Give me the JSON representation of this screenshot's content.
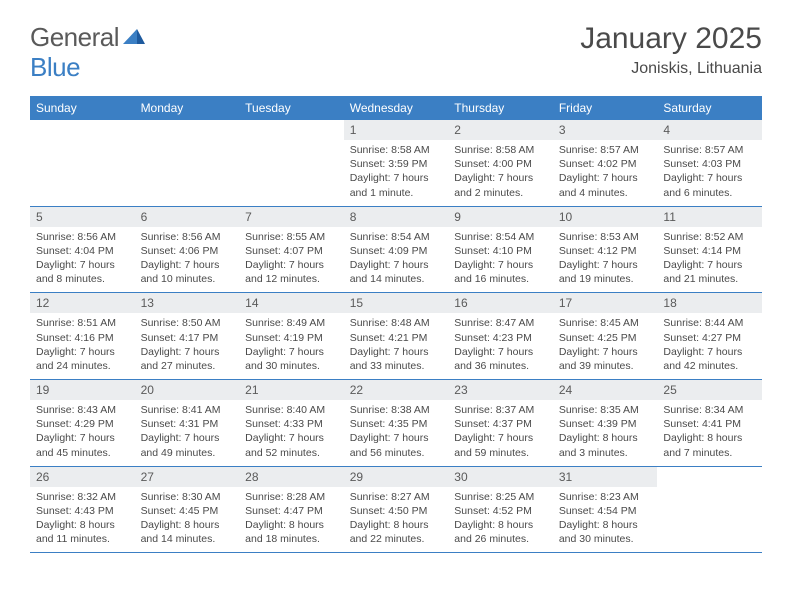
{
  "brand": {
    "text1": "General",
    "text2": "Blue"
  },
  "title": "January 2025",
  "location": "Joniskis, Lithuania",
  "headerColor": "#3b7fc4",
  "dayNames": [
    "Sunday",
    "Monday",
    "Tuesday",
    "Wednesday",
    "Thursday",
    "Friday",
    "Saturday"
  ],
  "weeks": [
    [
      {
        "n": "",
        "lines": []
      },
      {
        "n": "",
        "lines": []
      },
      {
        "n": "",
        "lines": []
      },
      {
        "n": "1",
        "lines": [
          "Sunrise: 8:58 AM",
          "Sunset: 3:59 PM",
          "Daylight: 7 hours and 1 minute."
        ]
      },
      {
        "n": "2",
        "lines": [
          "Sunrise: 8:58 AM",
          "Sunset: 4:00 PM",
          "Daylight: 7 hours and 2 minutes."
        ]
      },
      {
        "n": "3",
        "lines": [
          "Sunrise: 8:57 AM",
          "Sunset: 4:02 PM",
          "Daylight: 7 hours and 4 minutes."
        ]
      },
      {
        "n": "4",
        "lines": [
          "Sunrise: 8:57 AM",
          "Sunset: 4:03 PM",
          "Daylight: 7 hours and 6 minutes."
        ]
      }
    ],
    [
      {
        "n": "5",
        "lines": [
          "Sunrise: 8:56 AM",
          "Sunset: 4:04 PM",
          "Daylight: 7 hours and 8 minutes."
        ]
      },
      {
        "n": "6",
        "lines": [
          "Sunrise: 8:56 AM",
          "Sunset: 4:06 PM",
          "Daylight: 7 hours and 10 minutes."
        ]
      },
      {
        "n": "7",
        "lines": [
          "Sunrise: 8:55 AM",
          "Sunset: 4:07 PM",
          "Daylight: 7 hours and 12 minutes."
        ]
      },
      {
        "n": "8",
        "lines": [
          "Sunrise: 8:54 AM",
          "Sunset: 4:09 PM",
          "Daylight: 7 hours and 14 minutes."
        ]
      },
      {
        "n": "9",
        "lines": [
          "Sunrise: 8:54 AM",
          "Sunset: 4:10 PM",
          "Daylight: 7 hours and 16 minutes."
        ]
      },
      {
        "n": "10",
        "lines": [
          "Sunrise: 8:53 AM",
          "Sunset: 4:12 PM",
          "Daylight: 7 hours and 19 minutes."
        ]
      },
      {
        "n": "11",
        "lines": [
          "Sunrise: 8:52 AM",
          "Sunset: 4:14 PM",
          "Daylight: 7 hours and 21 minutes."
        ]
      }
    ],
    [
      {
        "n": "12",
        "lines": [
          "Sunrise: 8:51 AM",
          "Sunset: 4:16 PM",
          "Daylight: 7 hours and 24 minutes."
        ]
      },
      {
        "n": "13",
        "lines": [
          "Sunrise: 8:50 AM",
          "Sunset: 4:17 PM",
          "Daylight: 7 hours and 27 minutes."
        ]
      },
      {
        "n": "14",
        "lines": [
          "Sunrise: 8:49 AM",
          "Sunset: 4:19 PM",
          "Daylight: 7 hours and 30 minutes."
        ]
      },
      {
        "n": "15",
        "lines": [
          "Sunrise: 8:48 AM",
          "Sunset: 4:21 PM",
          "Daylight: 7 hours and 33 minutes."
        ]
      },
      {
        "n": "16",
        "lines": [
          "Sunrise: 8:47 AM",
          "Sunset: 4:23 PM",
          "Daylight: 7 hours and 36 minutes."
        ]
      },
      {
        "n": "17",
        "lines": [
          "Sunrise: 8:45 AM",
          "Sunset: 4:25 PM",
          "Daylight: 7 hours and 39 minutes."
        ]
      },
      {
        "n": "18",
        "lines": [
          "Sunrise: 8:44 AM",
          "Sunset: 4:27 PM",
          "Daylight: 7 hours and 42 minutes."
        ]
      }
    ],
    [
      {
        "n": "19",
        "lines": [
          "Sunrise: 8:43 AM",
          "Sunset: 4:29 PM",
          "Daylight: 7 hours and 45 minutes."
        ]
      },
      {
        "n": "20",
        "lines": [
          "Sunrise: 8:41 AM",
          "Sunset: 4:31 PM",
          "Daylight: 7 hours and 49 minutes."
        ]
      },
      {
        "n": "21",
        "lines": [
          "Sunrise: 8:40 AM",
          "Sunset: 4:33 PM",
          "Daylight: 7 hours and 52 minutes."
        ]
      },
      {
        "n": "22",
        "lines": [
          "Sunrise: 8:38 AM",
          "Sunset: 4:35 PM",
          "Daylight: 7 hours and 56 minutes."
        ]
      },
      {
        "n": "23",
        "lines": [
          "Sunrise: 8:37 AM",
          "Sunset: 4:37 PM",
          "Daylight: 7 hours and 59 minutes."
        ]
      },
      {
        "n": "24",
        "lines": [
          "Sunrise: 8:35 AM",
          "Sunset: 4:39 PM",
          "Daylight: 8 hours and 3 minutes."
        ]
      },
      {
        "n": "25",
        "lines": [
          "Sunrise: 8:34 AM",
          "Sunset: 4:41 PM",
          "Daylight: 8 hours and 7 minutes."
        ]
      }
    ],
    [
      {
        "n": "26",
        "lines": [
          "Sunrise: 8:32 AM",
          "Sunset: 4:43 PM",
          "Daylight: 8 hours and 11 minutes."
        ]
      },
      {
        "n": "27",
        "lines": [
          "Sunrise: 8:30 AM",
          "Sunset: 4:45 PM",
          "Daylight: 8 hours and 14 minutes."
        ]
      },
      {
        "n": "28",
        "lines": [
          "Sunrise: 8:28 AM",
          "Sunset: 4:47 PM",
          "Daylight: 8 hours and 18 minutes."
        ]
      },
      {
        "n": "29",
        "lines": [
          "Sunrise: 8:27 AM",
          "Sunset: 4:50 PM",
          "Daylight: 8 hours and 22 minutes."
        ]
      },
      {
        "n": "30",
        "lines": [
          "Sunrise: 8:25 AM",
          "Sunset: 4:52 PM",
          "Daylight: 8 hours and 26 minutes."
        ]
      },
      {
        "n": "31",
        "lines": [
          "Sunrise: 8:23 AM",
          "Sunset: 4:54 PM",
          "Daylight: 8 hours and 30 minutes."
        ]
      },
      {
        "n": "",
        "lines": []
      }
    ]
  ]
}
